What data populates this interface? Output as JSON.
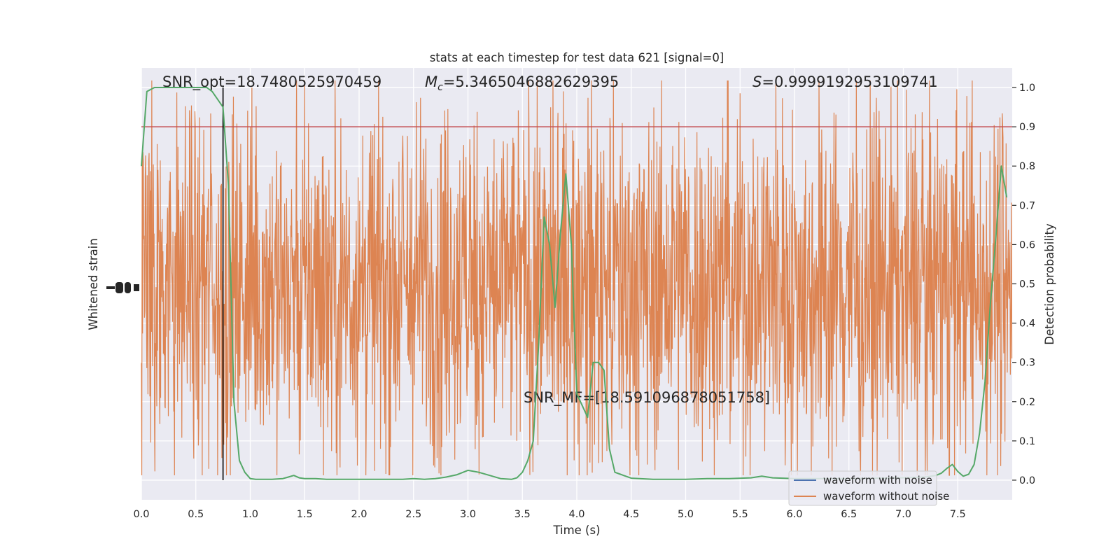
{
  "chart_data": {
    "type": "line",
    "title": "stats at each timestep for test data 621 [signal=0]",
    "xlabel": "Time (s)",
    "ylabel_left": "Whitened strain",
    "ylabel_right": "Detection probability",
    "xlim": [
      0.0,
      8.0
    ],
    "ylim_right": [
      -0.05,
      1.05
    ],
    "x_ticks": [
      "0.0",
      "0.5",
      "1.0",
      "1.5",
      "2.0",
      "2.5",
      "3.0",
      "3.5",
      "4.0",
      "4.5",
      "5.0",
      "5.5",
      "6.0",
      "6.5",
      "7.0",
      "7.5"
    ],
    "y_ticks_right": [
      "0.0",
      "0.1",
      "0.2",
      "0.3",
      "0.4",
      "0.5",
      "0.6",
      "0.7",
      "0.8",
      "0.9",
      "1.0"
    ],
    "grid": true,
    "legend_position": "lower-right",
    "legend": [
      "waveform with noise",
      "waveform without noise"
    ],
    "annotations": {
      "snr_opt": "SNR_opt=18.7480525970459",
      "mc_symbol": "M",
      "mc_sub": "c",
      "mc_value": "=5.3465046882629395",
      "s_symbol": "S",
      "s_value": "=0.9999192953109741",
      "snr_mf": "SNR_MF=[18.591096878051758]"
    },
    "threshold": 0.9,
    "marker_time": 0.75,
    "detection_probability": {
      "x": [
        0.0,
        0.05,
        0.12,
        0.2,
        0.3,
        0.4,
        0.5,
        0.6,
        0.65,
        0.7,
        0.75,
        0.8,
        0.85,
        0.9,
        0.95,
        1.0,
        1.05,
        1.1,
        1.2,
        1.3,
        1.35,
        1.4,
        1.45,
        1.5,
        1.6,
        1.7,
        1.8,
        2.0,
        2.2,
        2.4,
        2.5,
        2.6,
        2.7,
        2.8,
        2.9,
        3.0,
        3.1,
        3.2,
        3.3,
        3.4,
        3.45,
        3.5,
        3.55,
        3.6,
        3.65,
        3.7,
        3.75,
        3.8,
        3.85,
        3.9,
        3.95,
        4.0,
        4.05,
        4.1,
        4.15,
        4.2,
        4.25,
        4.3,
        4.35,
        4.4,
        4.5,
        4.7,
        5.0,
        5.2,
        5.4,
        5.6,
        5.7,
        5.8,
        6.0,
        6.5,
        7.0,
        7.2,
        7.3,
        7.35,
        7.4,
        7.45,
        7.5,
        7.55,
        7.6,
        7.65,
        7.7,
        7.75,
        7.8,
        7.85,
        7.9,
        7.95
      ],
      "y": [
        0.8,
        0.99,
        1.0,
        1.0,
        1.0,
        1.0,
        1.0,
        1.0,
        0.99,
        0.97,
        0.95,
        0.75,
        0.2,
        0.05,
        0.02,
        0.004,
        0.002,
        0.002,
        0.002,
        0.004,
        0.008,
        0.012,
        0.006,
        0.004,
        0.004,
        0.002,
        0.002,
        0.002,
        0.002,
        0.002,
        0.004,
        0.002,
        0.004,
        0.008,
        0.014,
        0.025,
        0.02,
        0.012,
        0.004,
        0.002,
        0.006,
        0.02,
        0.05,
        0.1,
        0.35,
        0.67,
        0.6,
        0.44,
        0.63,
        0.78,
        0.6,
        0.22,
        0.19,
        0.16,
        0.3,
        0.3,
        0.28,
        0.08,
        0.02,
        0.015,
        0.005,
        0.002,
        0.002,
        0.004,
        0.004,
        0.006,
        0.01,
        0.006,
        0.004,
        0.004,
        0.006,
        0.008,
        0.012,
        0.018,
        0.03,
        0.04,
        0.022,
        0.01,
        0.015,
        0.04,
        0.12,
        0.25,
        0.45,
        0.62,
        0.8,
        0.72
      ]
    },
    "colors": {
      "background": "#eaeaf2",
      "grid": "#ffffff",
      "noise_waveform": "#dd8452",
      "clean_waveform": "#4c72b0",
      "probability": "#55a868",
      "threshold": "#c44e52",
      "marker": "#000000",
      "text": "#262626"
    }
  }
}
